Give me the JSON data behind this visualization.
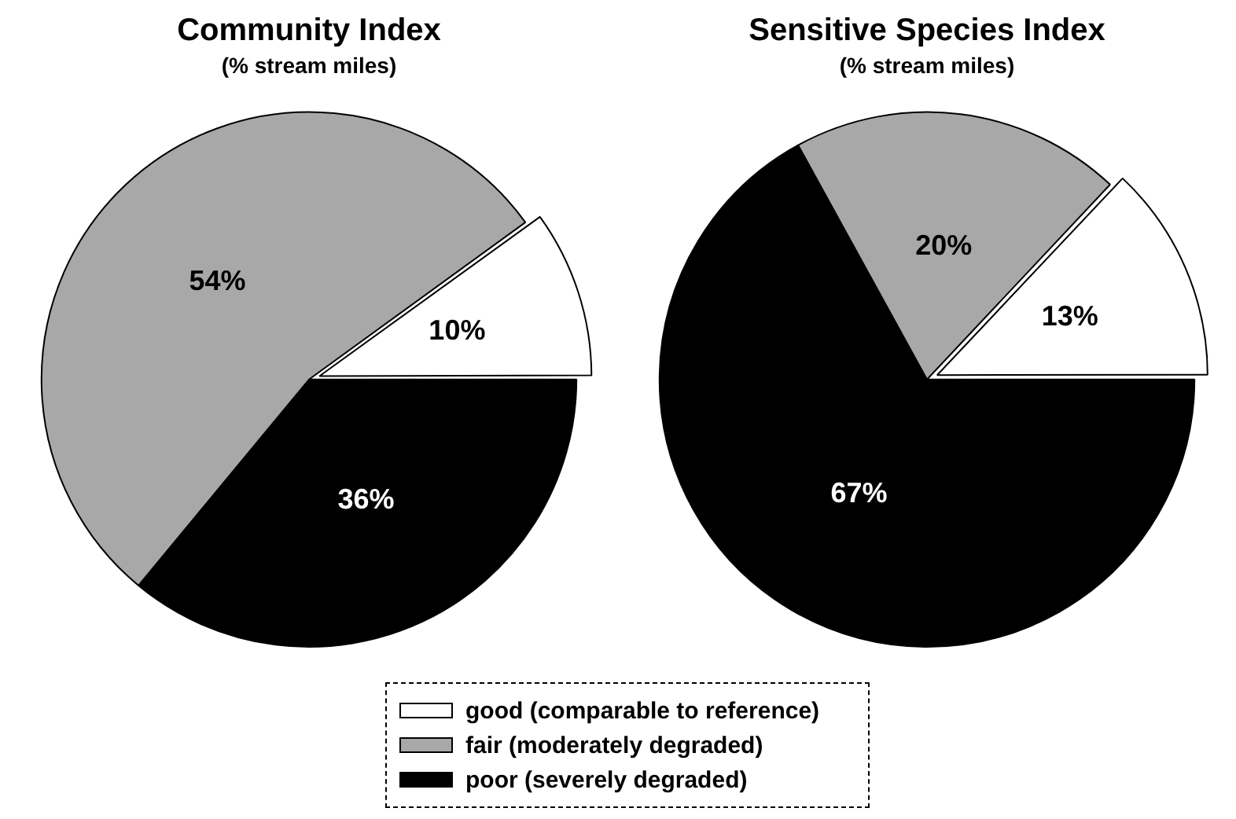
{
  "chart_data": [
    {
      "type": "pie",
      "title": "Community Index",
      "subtitle": "(% stream miles)",
      "categories": [
        "good (comparable to reference)",
        "fair (moderately degraded)",
        "poor (severely degraded)"
      ],
      "values": [
        10,
        54,
        36
      ],
      "value_labels": [
        "10%",
        "54%",
        "36%"
      ],
      "colors": [
        "#ffffff",
        "#a8a8a8",
        "#000000"
      ],
      "legend": "bottom"
    },
    {
      "type": "pie",
      "title": "Sensitive Species Index",
      "subtitle": "(% stream miles)",
      "categories": [
        null,
        null,
        null
      ],
      "values": [
        13,
        20,
        67
      ],
      "value_labels": [
        "13%",
        "20%",
        "67%"
      ],
      "colors": [
        "#ffffff",
        "#a8a8a8",
        "#000000"
      ]
    }
  ]
}
